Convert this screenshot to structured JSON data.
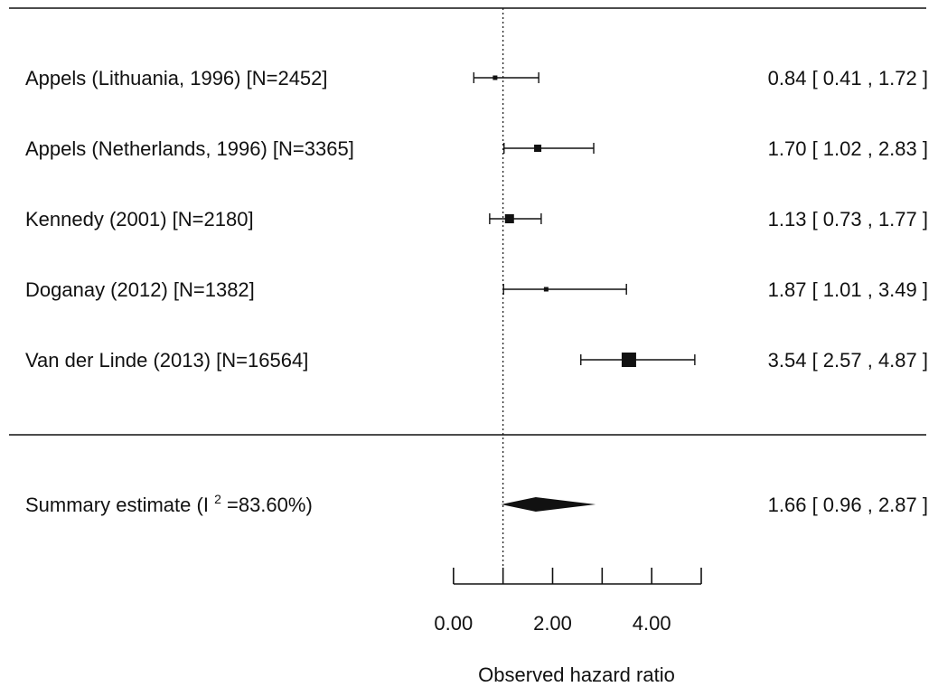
{
  "chart_data": {
    "type": "forest",
    "xlabel": "Observed hazard ratio",
    "xlim": [
      -1.0,
      5.0
    ],
    "reference_value": 1.0,
    "x_ticks": [
      0.0,
      1.0,
      2.0,
      3.0,
      4.0,
      5.0
    ],
    "x_tick_labels": [
      {
        "value": 0.0,
        "label": "0.00"
      },
      {
        "value": 2.0,
        "label": "2.00"
      },
      {
        "value": 4.0,
        "label": "4.00"
      }
    ],
    "studies": [
      {
        "label": "Appels (Lithuania, 1996)   [N=2452]",
        "estimate": 0.84,
        "lower": 0.41,
        "upper": 1.72,
        "ci_text": "0.84 [ 0.41 , 1.72 ]",
        "weight_size": 5
      },
      {
        "label": "Appels (Netherlands, 1996)   [N=3365]",
        "estimate": 1.7,
        "lower": 1.02,
        "upper": 2.83,
        "ci_text": "1.70 [ 1.02 , 2.83 ]",
        "weight_size": 8
      },
      {
        "label": "Kennedy (2001)   [N=2180]",
        "estimate": 1.13,
        "lower": 0.73,
        "upper": 1.77,
        "ci_text": "1.13 [ 0.73 , 1.77 ]",
        "weight_size": 10
      },
      {
        "label": "Doganay (2012)    [N=1382]",
        "estimate": 1.87,
        "lower": 1.01,
        "upper": 3.49,
        "ci_text": "1.87 [ 1.01 , 3.49 ]",
        "weight_size": 5
      },
      {
        "label": "Van der Linde (2013)    [N=16564]",
        "estimate": 3.54,
        "lower": 2.57,
        "upper": 4.87,
        "ci_text": "3.54 [ 2.57 , 4.87 ]",
        "weight_size": 16
      }
    ],
    "summary": {
      "label_prefix": "Summary estimate  (I",
      "label_superscript": "2",
      "label_suffix": "=83.60%)",
      "estimate": 1.66,
      "lower": 0.96,
      "upper": 2.87,
      "ci_text": "1.66 [ 0.96 , 2.87 ]"
    }
  }
}
